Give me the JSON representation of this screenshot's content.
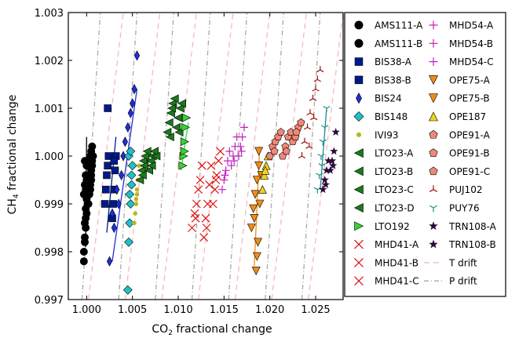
{
  "chart_data": {
    "type": "scatter",
    "xlabel_main": "CO",
    "xlabel_sub": "2",
    "xlabel_rest": " fractional change",
    "ylabel_main": "CH",
    "ylabel_sub": "4",
    "ylabel_rest": " fractional change",
    "xlim": [
      0.998,
      1.028
    ],
    "ylim": [
      0.997,
      1.003
    ],
    "x_ticks": [
      1.0,
      1.005,
      1.01,
      1.015,
      1.02,
      1.025
    ],
    "x_tick_labels": [
      "1.000",
      "1.005",
      "1.010",
      "1.015",
      "1.020",
      "1.025"
    ],
    "y_ticks": [
      0.997,
      0.998,
      0.999,
      1.0,
      1.001,
      1.002,
      1.003
    ],
    "y_tick_labels": [
      "0.997",
      "0.998",
      "0.999",
      "1.000",
      "1.001",
      "1.002",
      "1.003"
    ],
    "grid": false,
    "legend_position": "right, outside plot",
    "series": [
      {
        "name": "AMS111-A",
        "marker": "circle",
        "color": "#000000",
        "x": [
          0.9997,
          0.9998,
          0.9999,
          1.0,
          1.0001,
          0.9997,
          0.9998,
          0.9999,
          1.0,
          0.9998,
          0.9999,
          1.0,
          0.9997,
          0.9998,
          0.9999,
          1.0,
          0.9998,
          0.9999
        ],
        "y": [
          0.998,
          0.9982,
          0.9985,
          0.9988,
          0.999,
          0.9992,
          0.9994,
          0.9996,
          0.9998,
          0.9983,
          0.9987,
          0.9991,
          0.9978,
          0.9986,
          0.9989,
          0.9995,
          0.9999,
          0.9993
        ]
      },
      {
        "name": "AMS111-B",
        "marker": "circle",
        "color": "#000000",
        "x": [
          1.0002,
          1.0003,
          1.0004,
          1.0005,
          1.0006,
          1.0003,
          1.0004,
          1.0005,
          1.0006,
          1.0007,
          1.0004,
          1.0005,
          1.0006,
          1.0003,
          1.0005
        ],
        "y": [
          0.999,
          0.9992,
          0.9994,
          0.9996,
          0.9998,
          0.9999,
          1.0,
          1.0001,
          1.0002,
          1.0,
          0.9993,
          0.9997,
          0.9999,
          0.9996,
          0.9995
        ]
      },
      {
        "name": "BIS38-A",
        "marker": "square",
        "color": "#001a8c",
        "x": [
          1.002,
          1.0021,
          1.0022,
          1.0023,
          1.0024,
          1.0023
        ],
        "y": [
          0.999,
          0.9993,
          0.9996,
          0.9998,
          1.0,
          1.001
        ]
      },
      {
        "name": "BIS38-B",
        "marker": "square",
        "color": "#001a8c",
        "x": [
          1.0028,
          1.0029,
          1.003,
          1.0031,
          1.0032,
          1.003
        ],
        "y": [
          0.9987,
          0.999,
          0.9993,
          0.9997,
          1.0,
          0.9999
        ]
      },
      {
        "name": "BIS24",
        "marker": "diamond",
        "color": "#1f2fd6",
        "x": [
          1.0025,
          1.003,
          1.0035,
          1.0038,
          1.004,
          1.0042,
          1.0045,
          1.0048,
          1.005,
          1.0052,
          1.0055,
          1.0033,
          1.0028
        ],
        "y": [
          0.9978,
          0.9985,
          0.999,
          0.9996,
          1.0,
          1.0003,
          1.0006,
          1.0009,
          1.0011,
          1.0014,
          1.0021,
          0.9993,
          0.9988
        ]
      },
      {
        "name": "BIS148",
        "marker": "diamond-wide",
        "color": "#20c0c8",
        "x": [
          1.0045,
          1.0046,
          1.0047,
          1.0048,
          1.0049,
          1.005,
          1.0046,
          1.0048,
          1.0047,
          1.0049
        ],
        "y": [
          0.9972,
          0.9982,
          0.9986,
          0.999,
          0.9994,
          0.9998,
          1.0,
          1.0001,
          0.9992,
          0.9996
        ]
      },
      {
        "name": "IVI93",
        "marker": "dot",
        "color": "#b8b81a",
        "x": [
          1.0052,
          1.0053,
          1.0054,
          1.0055,
          1.0056,
          1.0057,
          1.0055,
          1.0054
        ],
        "y": [
          0.9986,
          0.9988,
          0.999,
          0.9992,
          0.9995,
          0.9998,
          0.9993,
          0.9991
        ]
      },
      {
        "name": "LTO23-A",
        "marker": "tri-left",
        "color": "#1a7a1a",
        "x": [
          1.0058,
          1.006,
          1.0062,
          1.0064,
          1.0066,
          1.0061,
          1.0063
        ],
        "y": [
          0.9995,
          0.9997,
          0.9999,
          1.0,
          1.0001,
          0.9996,
          0.9998
        ]
      },
      {
        "name": "LTO23-B",
        "marker": "tri-left",
        "color": "#1a7a1a",
        "x": [
          1.0068,
          1.007,
          1.0072,
          1.0074,
          1.0076,
          1.0071
        ],
        "y": [
          0.9997,
          0.9999,
          1.0,
          1.0001,
          1.0,
          0.9998
        ]
      },
      {
        "name": "LTO23-C",
        "marker": "tri-left",
        "color": "#1a7a1a",
        "x": [
          1.0088,
          1.009,
          1.0092,
          1.0094,
          1.0096,
          1.0091,
          1.0093
        ],
        "y": [
          1.0005,
          1.0007,
          1.0009,
          1.0011,
          1.0012,
          1.0004,
          1.001
        ]
      },
      {
        "name": "LTO23-D",
        "marker": "tri-left",
        "color": "#1a7a1a",
        "x": [
          1.0098,
          1.01,
          1.0102,
          1.0104,
          1.0101
        ],
        "y": [
          1.0006,
          1.0008,
          1.001,
          1.0011,
          1.0005
        ]
      },
      {
        "name": "LTO192",
        "marker": "tri-right",
        "color": "#33d633",
        "x": [
          1.0105,
          1.0106,
          1.0107,
          1.0108,
          1.0109,
          1.0107
        ],
        "y": [
          0.9998,
          1.0,
          1.0003,
          1.0006,
          1.0008,
          1.0001
        ]
      },
      {
        "name": "MHD41-A",
        "marker": "x",
        "color": "#e01010",
        "x": [
          1.0115,
          1.0118,
          1.012,
          1.0122,
          1.0124,
          1.0126,
          1.0119
        ],
        "y": [
          0.9985,
          0.9988,
          0.999,
          0.9993,
          0.9995,
          0.9998,
          0.9987
        ]
      },
      {
        "name": "MHD41-B",
        "marker": "x",
        "color": "#e01010",
        "x": [
          1.0128,
          1.013,
          1.0132,
          1.0134,
          1.0136,
          1.0131
        ],
        "y": [
          0.9983,
          0.9987,
          0.999,
          0.9994,
          0.9998,
          0.9985
        ]
      },
      {
        "name": "MHD41-C",
        "marker": "x",
        "color": "#e01010",
        "x": [
          1.0138,
          1.014,
          1.0142,
          1.0144,
          1.0146,
          1.0141
        ],
        "y": [
          0.999,
          0.9993,
          0.9996,
          0.9999,
          1.0001,
          0.9995
        ]
      },
      {
        "name": "MHD54-A",
        "marker": "plus",
        "color": "#c020c0",
        "x": [
          1.0148,
          1.015,
          1.0152,
          1.0154,
          1.0156,
          1.0151
        ],
        "y": [
          0.9993,
          0.9995,
          0.9997,
          0.9999,
          1.0001,
          0.9996
        ]
      },
      {
        "name": "MHD54-B",
        "marker": "plus",
        "color": "#c020c0",
        "x": [
          1.0158,
          1.016,
          1.0162,
          1.0164,
          1.0161
        ],
        "y": [
          0.9998,
          1.0,
          1.0002,
          1.0004,
          0.9999
        ]
      },
      {
        "name": "MHD54-C",
        "marker": "plus",
        "color": "#c020c0",
        "x": [
          1.0166,
          1.0168,
          1.017,
          1.0172,
          1.0169
        ],
        "y": [
          1.0,
          1.0002,
          1.0004,
          1.0006,
          1.0001
        ]
      },
      {
        "name": "OPE75-A",
        "marker": "tri-down",
        "color": "#f08c1a",
        "x": [
          1.018,
          1.0182,
          1.0184,
          1.0186,
          1.0188,
          1.0183
        ],
        "y": [
          0.9985,
          0.9989,
          0.9992,
          0.9995,
          0.9998,
          0.9987
        ]
      },
      {
        "name": "OPE75-B",
        "marker": "tri-down",
        "color": "#f08c1a",
        "x": [
          1.0185,
          1.0187,
          1.0189,
          1.0191,
          1.0188,
          1.0186
        ],
        "y": [
          0.9976,
          0.9982,
          0.999,
          0.9996,
          1.0001,
          0.9979
        ]
      },
      {
        "name": "OPE187",
        "marker": "tri-up",
        "color": "#f0d21a",
        "x": [
          1.0192,
          1.0194,
          1.0196,
          1.0198,
          1.0195
        ],
        "y": [
          0.9993,
          0.9996,
          0.9998,
          1.0,
          0.9997
        ]
      },
      {
        "name": "OPE91-A",
        "marker": "pentagon",
        "color": "#f08878",
        "x": [
          1.02,
          1.0203,
          1.0206,
          1.0209,
          1.0212,
          1.0205
        ],
        "y": [
          1.0,
          1.0002,
          1.0003,
          1.0004,
          1.0005,
          1.0001
        ]
      },
      {
        "name": "OPE91-B",
        "marker": "pentagon",
        "color": "#f08878",
        "x": [
          1.0214,
          1.0217,
          1.022,
          1.0223,
          1.0218
        ],
        "y": [
          1.0,
          1.0002,
          1.0004,
          1.0005,
          1.0001
        ]
      },
      {
        "name": "OPE91-C",
        "marker": "pentagon",
        "color": "#f08878",
        "x": [
          1.0225,
          1.0228,
          1.0231,
          1.0234,
          1.0229
        ],
        "y": [
          1.0003,
          1.0004,
          1.0006,
          1.0007,
          1.0005
        ]
      },
      {
        "name": "PUJ102",
        "marker": "tri-y",
        "color": "#a01010",
        "x": [
          1.0235,
          1.0238,
          1.0241,
          1.0244,
          1.0247,
          1.025,
          1.0252,
          1.0255,
          1.0243,
          1.0248
        ],
        "y": [
          1.0,
          1.0003,
          1.0006,
          1.0009,
          1.0012,
          1.0014,
          1.0016,
          1.0018,
          1.0002,
          1.0008
        ]
      },
      {
        "name": "PUY76",
        "marker": "tri-y-up",
        "color": "#1a9090",
        "x": [
          1.0252,
          1.0254,
          1.0256,
          1.0258,
          1.026,
          1.0262,
          1.0257
        ],
        "y": [
          0.9993,
          0.9996,
          1.0,
          1.0003,
          1.0006,
          1.001,
          0.9998
        ]
      },
      {
        "name": "TRN108-A",
        "marker": "star",
        "color": "#2a0a3a",
        "x": [
          1.0258,
          1.026,
          1.0262,
          1.0264,
          1.0261
        ],
        "y": [
          0.9993,
          0.9995,
          0.9997,
          0.9999,
          0.9994
        ]
      },
      {
        "name": "TRN108-B",
        "marker": "star",
        "color": "#2a0a3a",
        "x": [
          1.0266,
          1.0268,
          1.027,
          1.0272,
          1.0269
        ],
        "y": [
          0.9997,
          0.9999,
          1.0001,
          1.0005,
          0.9998
        ]
      }
    ],
    "fit_lines": [
      {
        "color": "#000000",
        "x": [
          0.9999,
          1.0
        ],
        "y": [
          0.9981,
          1.0004
        ]
      },
      {
        "color": "#001a8c",
        "x": [
          1.0022,
          1.0032
        ],
        "y": [
          0.9984,
          1.0004
        ]
      },
      {
        "color": "#1f2fd6",
        "x": [
          1.0028,
          1.0055
        ],
        "y": [
          0.9978,
          1.0014
        ]
      },
      {
        "color": "#33d633",
        "x": [
          1.0103,
          1.0111
        ],
        "y": [
          0.9997,
          1.0007
        ]
      },
      {
        "color": "#f08c1a",
        "x": [
          1.0183,
          1.0189
        ],
        "y": [
          0.9977,
          1.0002
        ]
      },
      {
        "color": "#1a9090",
        "x": [
          1.0255,
          1.0262
        ],
        "y": [
          0.9993,
          1.001
        ]
      }
    ],
    "drift_lines": {
      "T_drift": {
        "name": "T drift",
        "color": "#f5b8c0",
        "dash": "dashed",
        "segments": [
          [
            1.0002,
            0.997,
            1.004,
            1.003
          ],
          [
            1.0042,
            0.997,
            1.008,
            1.003
          ],
          [
            1.0082,
            0.997,
            1.012,
            1.003
          ],
          [
            1.0122,
            0.997,
            1.016,
            1.003
          ],
          [
            1.0162,
            0.997,
            1.02,
            1.003
          ],
          [
            1.0202,
            0.997,
            1.024,
            1.003
          ],
          [
            1.0242,
            0.997,
            1.028,
            1.003
          ]
        ]
      },
      "P_drift": {
        "name": "P drift",
        "color": "#a8a8a8",
        "dash": "dashdot",
        "segments": [
          [
            0.9995,
            0.997,
            1.0015,
            1.003
          ],
          [
            1.0035,
            0.997,
            1.0055,
            1.003
          ],
          [
            1.0075,
            0.997,
            1.0095,
            1.003
          ],
          [
            1.0115,
            0.997,
            1.0135,
            1.003
          ],
          [
            1.0155,
            0.997,
            1.0175,
            1.003
          ],
          [
            1.0195,
            0.997,
            1.0215,
            1.003
          ],
          [
            1.0235,
            0.997,
            1.0255,
            1.003
          ]
        ]
      }
    },
    "legend": {
      "col1": [
        "AMS111-A",
        "AMS111-B",
        "BIS38-A",
        "BIS38-B",
        "BIS24",
        "BIS148",
        "IVI93",
        "LTO23-A",
        "LTO23-B",
        "LTO23-C",
        "LTO23-D",
        "LTO192",
        "MHD41-A",
        "MHD41-B",
        "MHD41-C"
      ],
      "col2": [
        "MHD54-A",
        "MHD54-B",
        "MHD54-C",
        "OPE75-A",
        "OPE75-B",
        "OPE187",
        "OPE91-A",
        "OPE91-B",
        "OPE91-C",
        "PUJ102",
        "PUY76",
        "TRN108-A",
        "TRN108-B",
        "T drift",
        "P drift"
      ]
    }
  }
}
